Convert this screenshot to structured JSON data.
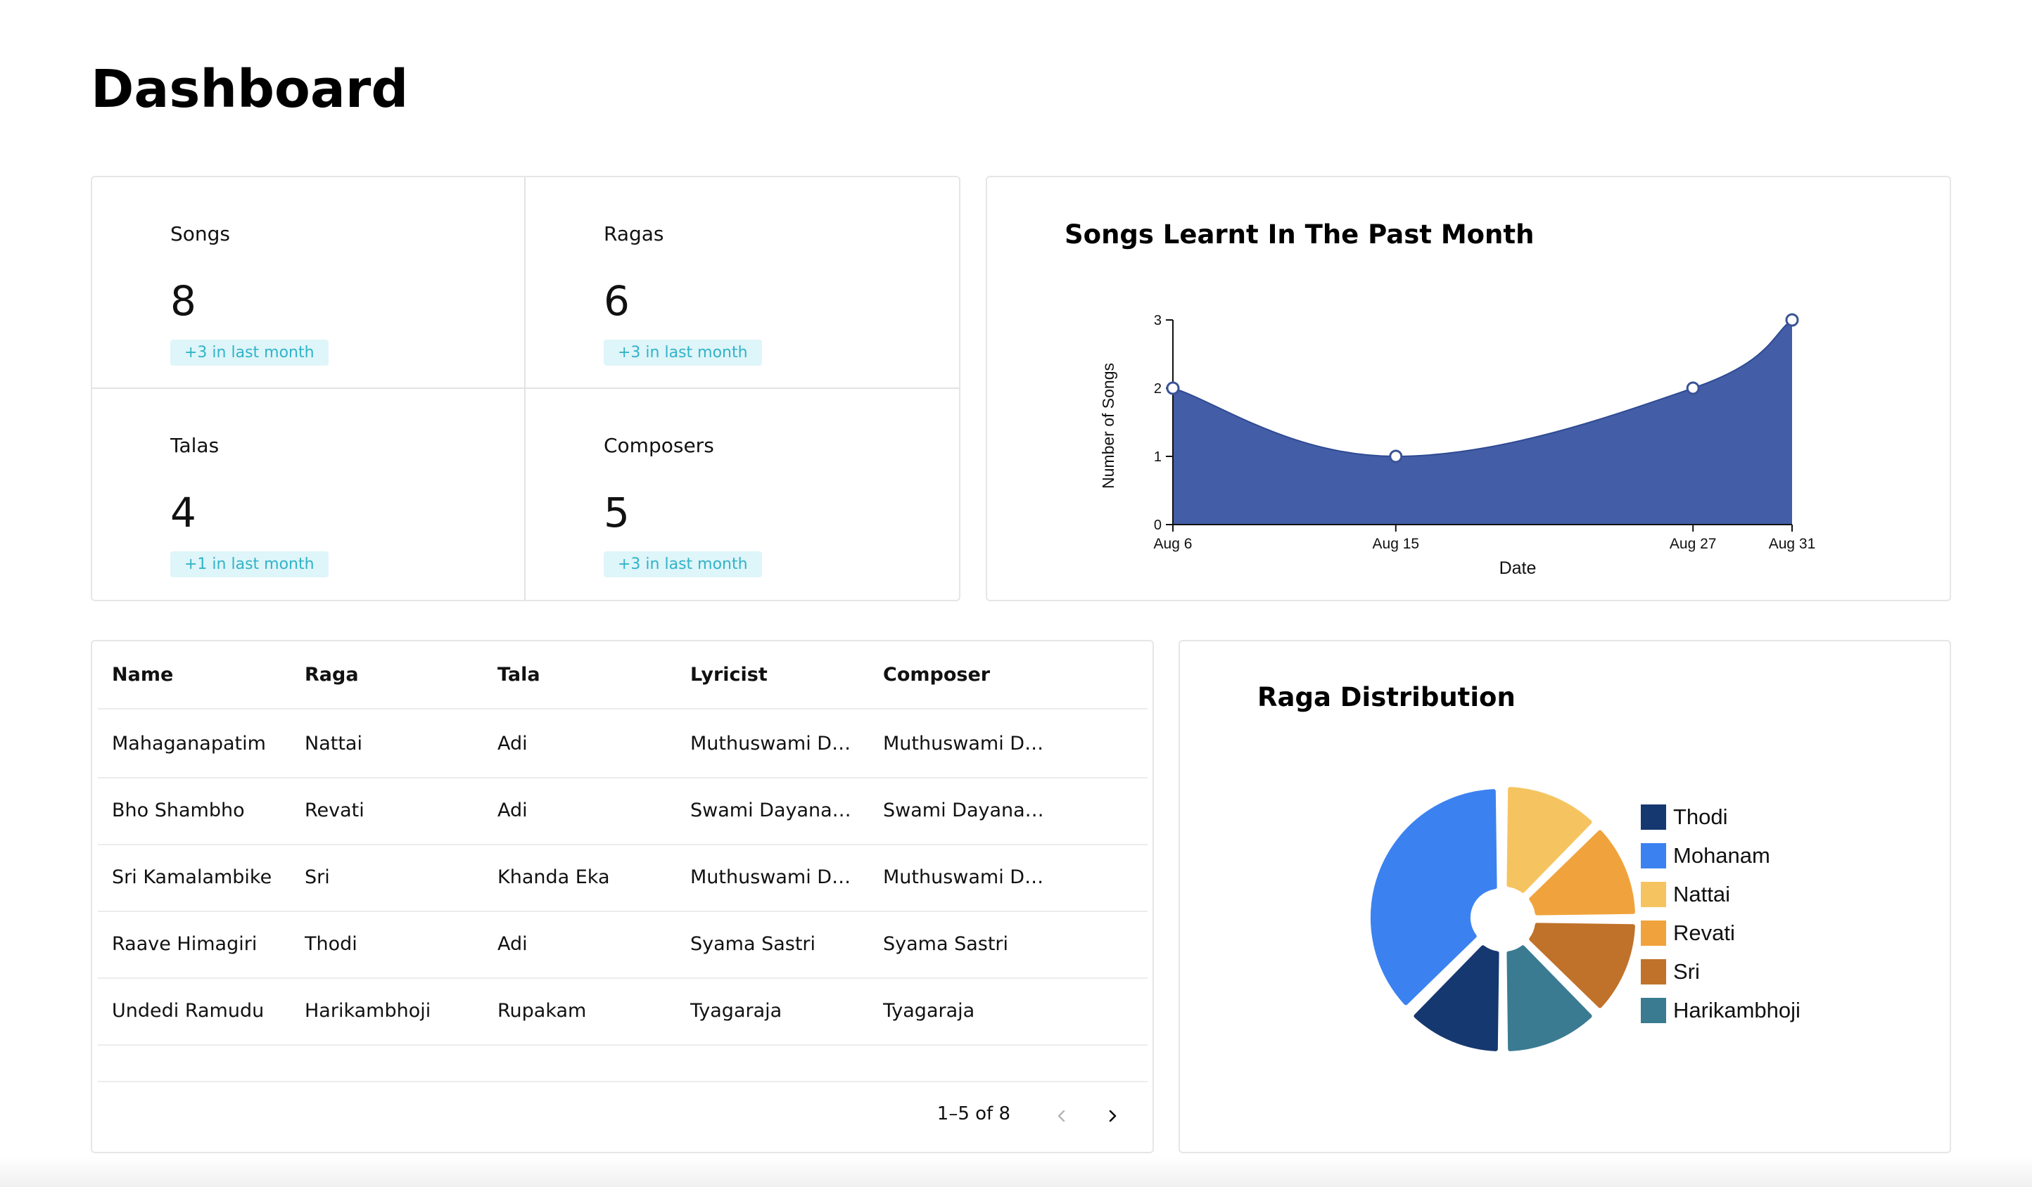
{
  "page": {
    "title": "Dashboard"
  },
  "stats": [
    {
      "label": "Songs",
      "value": "8",
      "badge": "+3 in last month"
    },
    {
      "label": "Ragas",
      "value": "6",
      "badge": "+3 in last month"
    },
    {
      "label": "Talas",
      "value": "4",
      "badge": "+1 in last month"
    },
    {
      "label": "Composers",
      "value": "5",
      "badge": "+3 in last month"
    }
  ],
  "line_card": {
    "title": "Songs Learnt In The Past Month"
  },
  "pie_card": {
    "title": "Raga Distribution"
  },
  "table": {
    "columns": [
      "Name",
      "Raga",
      "Tala",
      "Lyricist",
      "Composer"
    ],
    "rows": [
      [
        "Mahaganapatim",
        "Nattai",
        "Adi",
        "Muthuswami Dikshitar",
        "Muthuswami Dikshitar"
      ],
      [
        "Bho Shambho",
        "Revati",
        "Adi",
        "Swami Dayananda Saraswati",
        "Swami Dayananda Saraswati"
      ],
      [
        "Sri Kamalambike",
        "Sri",
        "Khanda Eka",
        "Muthuswami Dikshitar",
        "Muthuswami Dikshitar"
      ],
      [
        "Raave Himagiri",
        "Thodi",
        "Adi",
        "Syama Sastri",
        "Syama Sastri"
      ],
      [
        "Undedi Ramudu",
        "Harikambhoji",
        "Rupakam",
        "Tyagaraja",
        "Tyagaraja"
      ]
    ],
    "pagination": {
      "range": "1–5 of 8",
      "prev_icon": "chevron-left-icon",
      "next_icon": "chevron-right-icon"
    }
  },
  "colors": {
    "accent_badge_bg": "#def5f9",
    "accent_badge_text": "#32b3c8",
    "area_fill": "#435ea6"
  },
  "chart_data": [
    {
      "type": "area",
      "title": "Songs Learnt In The Past Month",
      "xlabel": "Date",
      "ylabel": "Number of Songs",
      "x": [
        "2023-08-06",
        "2023-08-15",
        "2023-08-27",
        "2023-08-31"
      ],
      "x_tick_labels": [
        "Aug 6",
        "Aug 15",
        "Aug 27",
        "Aug 31"
      ],
      "values": [
        2,
        1,
        2,
        3
      ],
      "ylim": [
        0,
        3
      ],
      "y_ticks": [
        0,
        1,
        2,
        3
      ],
      "grid": false,
      "color": "#435ea6"
    },
    {
      "type": "pie",
      "title": "Raga Distribution",
      "legend": "right",
      "slices": [
        {
          "label": "Thodi",
          "value": 1,
          "color": "#163870"
        },
        {
          "label": "Mohanam",
          "value": 3,
          "color": "#3b82f0"
        },
        {
          "label": "Nattai",
          "value": 1,
          "color": "#f5c460"
        },
        {
          "label": "Revati",
          "value": 1,
          "color": "#f0a33c"
        },
        {
          "label": "Sri",
          "value": 1,
          "color": "#c0722a"
        },
        {
          "label": "Harikambhoji",
          "value": 1,
          "color": "#3a7b91"
        }
      ]
    }
  ]
}
